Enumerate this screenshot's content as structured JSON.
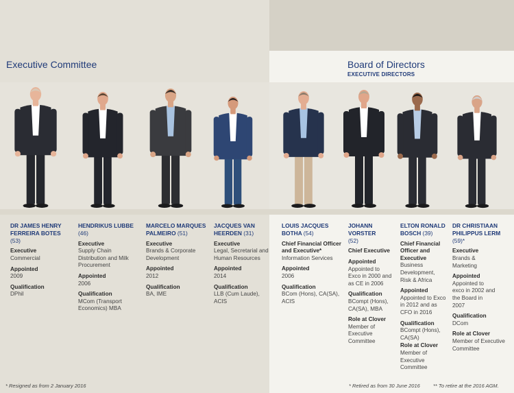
{
  "executive_committee": {
    "title": "Executive Committee",
    "footnote": "* Resigned as from 2 January 2016",
    "members": [
      {
        "name": "DR JAMES HENRY FERREIRA BOTES",
        "age": "(53)",
        "fields": [
          {
            "label": "Executive",
            "value": "Commercial"
          },
          {
            "label": "Appointed",
            "value": "2009"
          },
          {
            "label": "Qualification",
            "value": "DPhil"
          }
        ]
      },
      {
        "name": "HENDRIKUS LUBBE",
        "age": "(46)",
        "fields": [
          {
            "label": "Executive",
            "value": "Supply Chain Distribution and Milk Procurement"
          },
          {
            "label": "Appointed",
            "value": "2006"
          },
          {
            "label": "Qualification",
            "value": "MCom (Transport Economics) MBA"
          }
        ]
      },
      {
        "name": "MARCELO MARQUES PALMEIRO",
        "age": "(51)",
        "fields": [
          {
            "label": "Executive",
            "value": "Brands & Corporate Development"
          },
          {
            "label": "Appointed",
            "value": "2012"
          },
          {
            "label": "Qualification",
            "value": "BA, IME"
          }
        ]
      },
      {
        "name": "JACQUES VAN HEERDEN",
        "age": "(31)",
        "fields": [
          {
            "label": "Executive",
            "value": "Legal, Secretarial and Human Resources"
          },
          {
            "label": "Appointed",
            "value": "2014"
          },
          {
            "label": "Qualification",
            "value": "LLB (Cum Laude), ACIS"
          }
        ]
      }
    ]
  },
  "board": {
    "title": "Board of Directors",
    "subtitle": "EXECUTIVE DIRECTORS",
    "footnote_left": "* Retired as from 30 June 2016",
    "footnote_right": "** To retire at the 2016 AGM.",
    "members": [
      {
        "name": "LOUIS JACQUES BOTHA",
        "age": "(54)",
        "fields": [
          {
            "label": "Chief Financial Officer and Executive*",
            "value": "Information Services"
          },
          {
            "label": "Appointed",
            "value": "2006"
          },
          {
            "label": "Qualification",
            "value": "BCom (Hons), CA(SA), ACIS"
          }
        ]
      },
      {
        "name": "JOHANN VORSTER",
        "age": "(52)",
        "fields": [
          {
            "label": "Chief Executive",
            "value": ""
          },
          {
            "label": "Appointed",
            "value": "Appointed to Exco in 2000 and as CE in 2006"
          },
          {
            "label": "Qualification",
            "value": "BCompt (Hons), CA(SA), MBA"
          },
          {
            "label": "Role at Clover",
            "value": "Member of Executive Committee"
          }
        ]
      },
      {
        "name": "ELTON RONALD BOSCH",
        "age": "(39)",
        "fields": [
          {
            "label": "Chief Financial Officer and Executive",
            "value": "Business Development, Risk & Africa"
          },
          {
            "label": "Appointed",
            "value": "Appointed to Exco in 2012 and as CFO in 2016"
          },
          {
            "label": "Qualification",
            "value": "BCompt (Hons), CA(SA)"
          },
          {
            "label": "Role at Clover",
            "value": "Member of Executive Committee"
          }
        ]
      },
      {
        "name": "DR CHRISTIAAN PHILIPPUS LERM",
        "age": "(59)*",
        "fields": [
          {
            "label": "Executive",
            "value": "Brands & Marketing"
          },
          {
            "label": "Appointed",
            "value": "Appointed to exco in 2002 and the Board in 2007"
          },
          {
            "label": "Qualification",
            "value": "DCom"
          },
          {
            "label": "Role at Clover",
            "value": "Member of Executive Committee"
          }
        ]
      }
    ]
  },
  "colors": {
    "accent": "#1f3a78",
    "left_bg": "#e3e0d7",
    "right_bg": "#f4f3ee"
  },
  "photos": [
    {
      "suit": "#2a2c33",
      "shirt": "#ffffff",
      "pants": "#25272d",
      "skin": "#e7b59a",
      "hair": "#d9c9b6"
    },
    {
      "suit": "#23252c",
      "shirt": "#ffffff",
      "pants": "#23252c",
      "skin": "#e0a88c",
      "hair": "#5a4532"
    },
    {
      "suit": "#3a3b3f",
      "shirt": "#a9c3e0",
      "pants": "#2d2e32",
      "skin": "#d9a586",
      "hair": "#3a3029"
    },
    {
      "suit": "#2e4673",
      "shirt": "#ffffff",
      "pants": "#2e4f7a",
      "skin": "#d59a7b",
      "hair": "#2c2320"
    },
    {
      "suit": "#26334d",
      "shirt": "#a7c3e2",
      "pants": "#cdb69a",
      "skin": "#e3ad92",
      "hair": "#8a7b6a"
    },
    {
      "suit": "#22242a",
      "shirt": "#ffffff",
      "pants": "#22242a",
      "skin": "#e0a68a",
      "hair": "#b7a893"
    },
    {
      "suit": "#2a2c33",
      "shirt": "#b8cde6",
      "pants": "#2a2c33",
      "skin": "#9b6a4d",
      "hair": "#1f1a17"
    },
    {
      "suit": "#2a2c33",
      "shirt": "#ffffff",
      "pants": "#2a2c33",
      "skin": "#d9a488",
      "hair": "#cfcfcf"
    }
  ]
}
